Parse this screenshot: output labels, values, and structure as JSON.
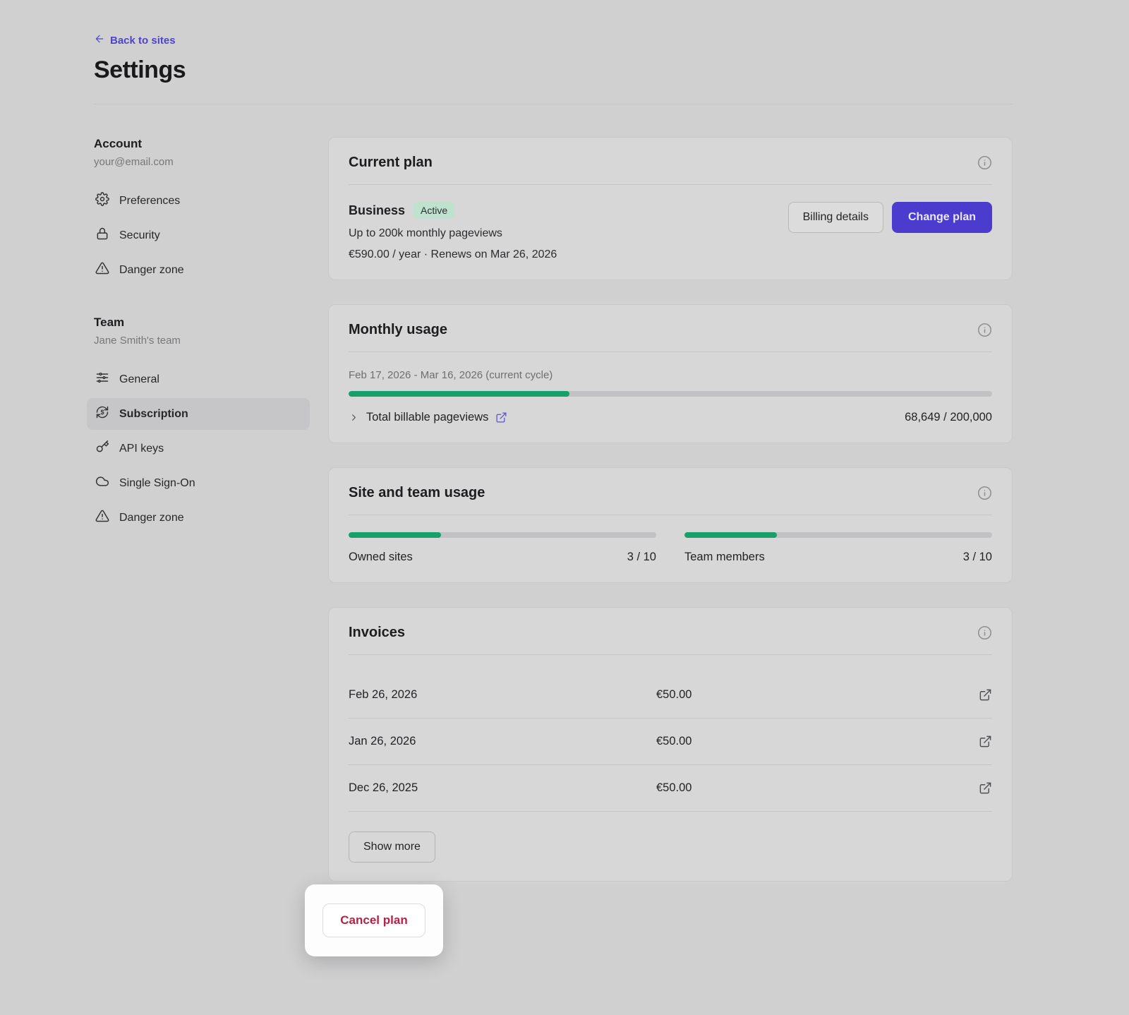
{
  "header": {
    "back_label": "Back to sites",
    "title": "Settings"
  },
  "sidebar": {
    "account": {
      "heading": "Account",
      "subtitle": "your@email.com",
      "items": [
        {
          "label": "Preferences",
          "icon": "gear"
        },
        {
          "label": "Security",
          "icon": "lock"
        },
        {
          "label": "Danger zone",
          "icon": "warning-triangle"
        }
      ]
    },
    "team": {
      "heading": "Team",
      "subtitle": "Jane Smith's team",
      "items": [
        {
          "label": "General",
          "icon": "sliders"
        },
        {
          "label": "Subscription",
          "icon": "dollar-refresh",
          "active": true
        },
        {
          "label": "API keys",
          "icon": "key"
        },
        {
          "label": "Single Sign-On",
          "icon": "cloud"
        },
        {
          "label": "Danger zone",
          "icon": "warning-triangle"
        }
      ]
    }
  },
  "current_plan": {
    "title": "Current plan",
    "plan_name": "Business",
    "status_badge": "Active",
    "pageviews_line": "Up to 200k monthly pageviews",
    "price_line": "€590.00 / year · Renews on Mar 26, 2026",
    "billing_details_label": "Billing details",
    "change_plan_label": "Change plan"
  },
  "monthly_usage": {
    "title": "Monthly usage",
    "cycle": "Feb 17, 2026 - Mar 16, 2026 (current cycle)",
    "progress_percent": 34.3,
    "row_label": "Total billable pageviews",
    "row_value": "68,649 / 200,000"
  },
  "site_team_usage": {
    "title": "Site and team usage",
    "metrics": [
      {
        "label": "Owned sites",
        "value": "3 / 10",
        "percent": 30
      },
      {
        "label": "Team members",
        "value": "3 / 10",
        "percent": 30
      }
    ]
  },
  "invoices": {
    "title": "Invoices",
    "rows": [
      {
        "date": "Feb 26, 2026",
        "amount": "€50.00"
      },
      {
        "date": "Jan 26, 2026",
        "amount": "€50.00"
      },
      {
        "date": "Dec 26, 2025",
        "amount": "€50.00"
      }
    ],
    "show_more_label": "Show more"
  },
  "cancel_plan": {
    "label": "Cancel plan"
  },
  "colors": {
    "accent_indigo": "#4b3cce",
    "link_indigo": "#4f43c9",
    "progress_green": "#16a06a",
    "badge_green_bg": "#bfe2cf",
    "danger_red": "#b32347",
    "page_bg": "#d0d0d1",
    "card_bg": "#d7d7d8"
  }
}
